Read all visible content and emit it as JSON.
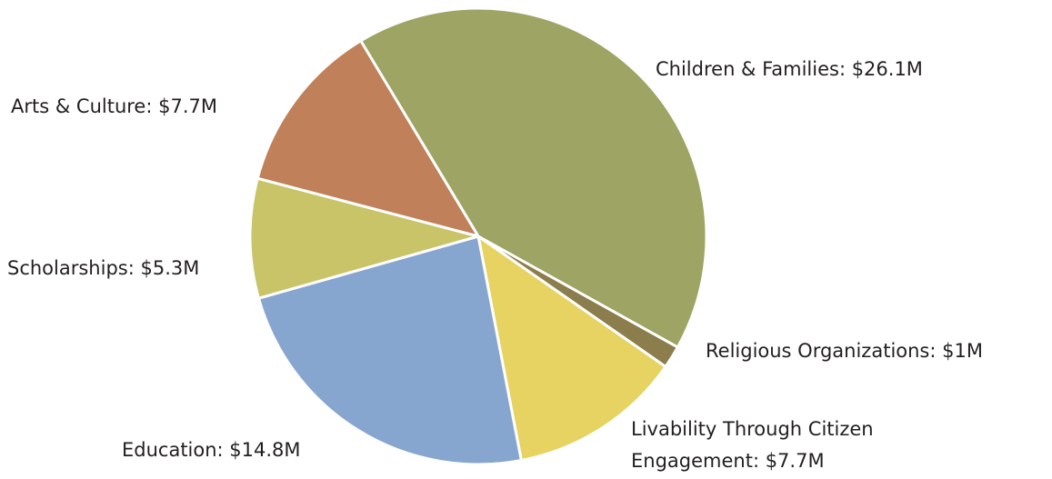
{
  "chart_data": {
    "type": "pie",
    "title": "",
    "unit": "$M",
    "start_angle_deg": -31,
    "direction": "clockwise",
    "slice_border_color": "#ffffff",
    "slices": [
      {
        "category": "Children & Families",
        "value": 26.1,
        "label": "Children & Families: $26.1M",
        "color": "#9ea464"
      },
      {
        "category": "Religious Organizations",
        "value": 1,
        "label": "Religious Organizations: $1M",
        "color": "#8b7d4c"
      },
      {
        "category": "Livability Through Citizen Engagement",
        "value": 7.7,
        "label_lines": [
          "Livability Through Citizen",
          "Engagement: $7.7M"
        ],
        "color": "#e6d362"
      },
      {
        "category": "Education",
        "value": 14.8,
        "label": "Education: $14.8M",
        "color": "#87a6cf"
      },
      {
        "category": "Scholarships",
        "value": 5.3,
        "label": "Scholarships: $5.3M",
        "color": "#c8c467"
      },
      {
        "category": "Arts & Culture",
        "value": 7.7,
        "label": "Arts & Culture: $7.7M",
        "color": "#c08059"
      }
    ]
  }
}
